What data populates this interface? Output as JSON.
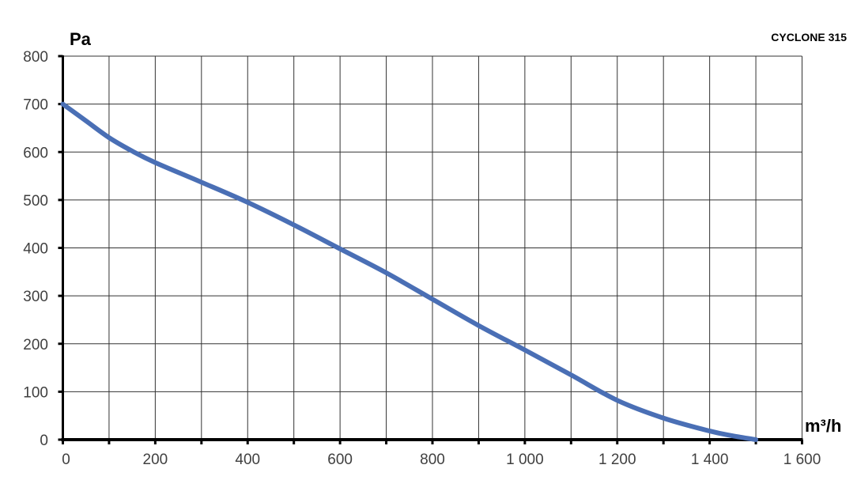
{
  "chart_data": {
    "type": "line",
    "title": "CYCLONE 315",
    "xlabel": "m³/h",
    "ylabel": "Pa",
    "xlim": [
      0,
      1600
    ],
    "ylim": [
      0,
      800
    ],
    "grid": true,
    "x_ticks": [
      "0",
      "200",
      "400",
      "600",
      "800",
      "1 000",
      "1 200",
      "1 400",
      "1 600"
    ],
    "y_ticks": [
      "0",
      "100",
      "200",
      "300",
      "400",
      "500",
      "600",
      "700",
      "800"
    ],
    "line_color": "#4a6fb5",
    "series": [
      {
        "x": [
          0,
          50,
          100,
          150,
          200,
          300,
          400,
          500,
          600,
          700,
          800,
          900,
          1000,
          1100,
          1200,
          1300,
          1400,
          1450,
          1500
        ],
        "y": [
          700,
          665,
          630,
          602,
          578,
          537,
          495,
          448,
          398,
          348,
          293,
          238,
          187,
          135,
          82,
          45,
          18,
          8,
          0
        ]
      }
    ]
  }
}
